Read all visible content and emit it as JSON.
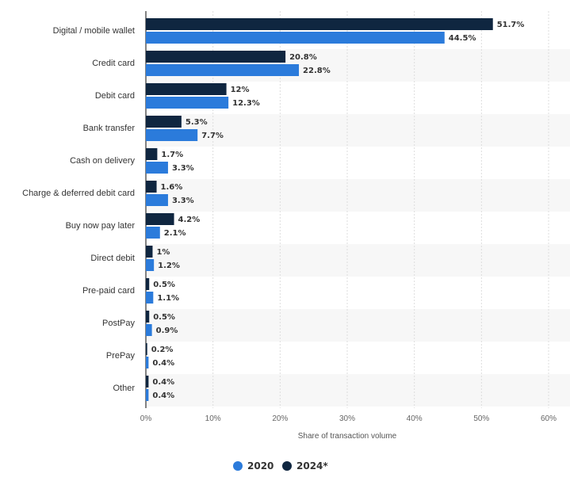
{
  "chart_data": {
    "type": "bar",
    "orientation": "horizontal",
    "categories": [
      "Digital / mobile wallet",
      "Credit card",
      "Debit card",
      "Bank transfer",
      "Cash on delivery",
      "Charge & deferred debit card",
      "Buy now pay later",
      "Direct debit",
      "Pre-paid card",
      "PostPay",
      "PrePay",
      "Other"
    ],
    "series": [
      {
        "name": "2024*",
        "color": "#0f2640",
        "values": [
          51.7,
          20.8,
          12,
          5.3,
          1.7,
          1.6,
          4.2,
          1,
          0.5,
          0.5,
          0.2,
          0.4
        ],
        "labels": [
          "51.7%",
          "20.8%",
          "12%",
          "5.3%",
          "1.7%",
          "1.6%",
          "4.2%",
          "1%",
          "0.5%",
          "0.5%",
          "0.2%",
          "0.4%"
        ]
      },
      {
        "name": "2020",
        "color": "#2b7bdb",
        "values": [
          44.5,
          22.8,
          12.3,
          7.7,
          3.3,
          3.3,
          2.1,
          1.2,
          1.1,
          0.9,
          0.4,
          0.4
        ],
        "labels": [
          "44.5%",
          "22.8%",
          "12.3%",
          "7.7%",
          "3.3%",
          "3.3%",
          "2.1%",
          "1.2%",
          "1.1%",
          "0.9%",
          "0.4%",
          "0.4%"
        ]
      }
    ],
    "xlabel": "Share of transaction volume",
    "xlim": [
      0,
      60
    ],
    "xticks": [
      0,
      10,
      20,
      30,
      40,
      50,
      60
    ],
    "xtick_labels": [
      "0%",
      "10%",
      "20%",
      "30%",
      "40%",
      "50%",
      "60%"
    ],
    "legend": {
      "position": "bottom-center",
      "items": [
        {
          "name": "2020",
          "color": "#2b7bdb"
        },
        {
          "name": "2024*",
          "color": "#0f2640"
        }
      ]
    },
    "grid": true,
    "band_colors": [
      "#ffffff",
      "#f7f7f7"
    ]
  }
}
